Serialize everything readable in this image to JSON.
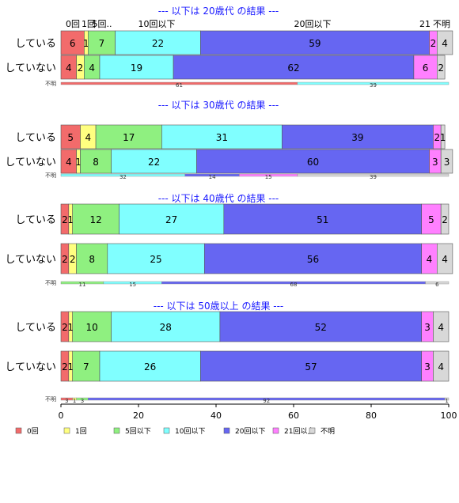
{
  "chart_data": {
    "type": "bar",
    "orientation": "horizontal",
    "stacked": true,
    "xlim": [
      0,
      100
    ],
    "x_ticks": [
      0,
      20,
      40,
      60,
      80,
      100
    ],
    "legend_position": "bottom",
    "column_headers": [
      "0回",
      "1回",
      "5回..",
      "10回以下",
      "20回以下",
      "21",
      "不明"
    ],
    "unknown_label": "不明",
    "categories": [
      {
        "name": "0回",
        "color": "#f26b6b"
      },
      {
        "name": "1回",
        "color": "#ffff80"
      },
      {
        "name": "5回以下",
        "color": "#8ff080"
      },
      {
        "name": "10回以下",
        "color": "#80ffff"
      },
      {
        "name": "20回以下",
        "color": "#6666f2"
      },
      {
        "name": "21回以上",
        "color": "#ff80ff"
      },
      {
        "name": "不明",
        "color": "#d8d8d8"
      }
    ],
    "panels": [
      {
        "title": "--- 以下は 20歳代 の結果 ---",
        "rows": [
          {
            "label": "している",
            "values": [
              6,
              1,
              7,
              22,
              59,
              2,
              4
            ]
          },
          {
            "label": "していない",
            "values": [
              4,
              2,
              4,
              19,
              62,
              6,
              2
            ]
          }
        ],
        "unknown_bar": [
          {
            "value": 61,
            "color": "#f26b6b"
          },
          {
            "value": 39,
            "color": "#80ffff"
          }
        ]
      },
      {
        "title": "--- 以下は 30歳代 の結果 ---",
        "rows": [
          {
            "label": "している",
            "values": [
              5,
              4,
              17,
              31,
              39,
              2,
              1
            ]
          },
          {
            "label": "していない",
            "values": [
              4,
              1,
              8,
              22,
              60,
              3,
              3
            ]
          }
        ],
        "unknown_bar": [
          {
            "value": 32,
            "color": "#80ffff"
          },
          {
            "value": 14,
            "color": "#6666f2"
          },
          {
            "value": 15,
            "color": "#ff80ff"
          },
          {
            "value": 39,
            "color": "#d8d8d8"
          }
        ]
      },
      {
        "title": "--- 以下は 40歳代 の結果 ---",
        "rows": [
          {
            "label": "している",
            "values": [
              2,
              1,
              12,
              27,
              51,
              5,
              2
            ]
          },
          {
            "label": "していない",
            "values": [
              2,
              2,
              8,
              25,
              56,
              4,
              4
            ]
          }
        ],
        "unknown_bar": [
          {
            "value": 11,
            "color": "#8ff080"
          },
          {
            "value": 15,
            "color": "#80ffff"
          },
          {
            "value": 68,
            "color": "#6666f2"
          },
          {
            "value": 6,
            "color": "#d8d8d8"
          }
        ]
      },
      {
        "title": "--- 以下は 50歳以上 の結果 ---",
        "rows": [
          {
            "label": "している",
            "values": [
              2,
              1,
              10,
              28,
              52,
              3,
              4
            ]
          },
          {
            "label": "していない",
            "values": [
              2,
              1,
              7,
              26,
              57,
              3,
              4
            ]
          }
        ],
        "unknown_bar": [
          {
            "value": 3,
            "color": "#f26b6b"
          },
          {
            "value": 1,
            "color": "#ffff80"
          },
          {
            "value": 3,
            "color": "#8ff080"
          },
          {
            "value": 92,
            "color": "#6666f2"
          },
          {
            "value": 1,
            "color": "#d8d8d8"
          }
        ]
      }
    ]
  }
}
